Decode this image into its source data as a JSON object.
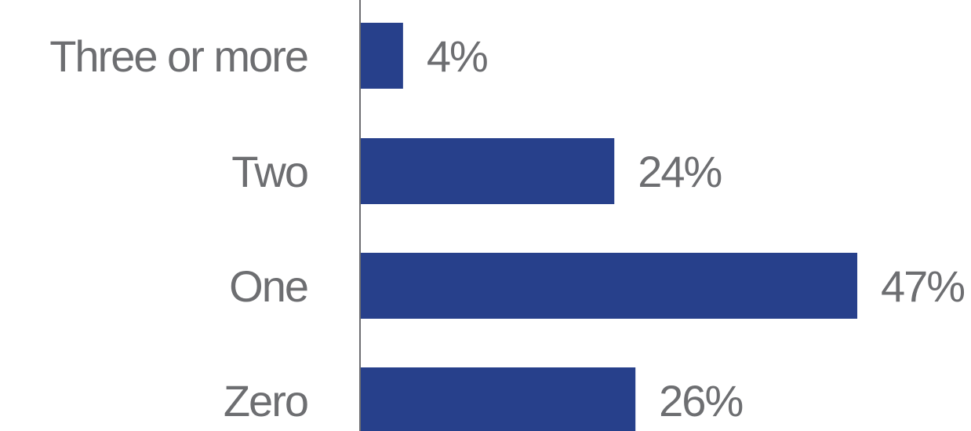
{
  "chart_data": {
    "type": "bar",
    "orientation": "horizontal",
    "categories": [
      "Three or more",
      "Two",
      "One",
      "Zero"
    ],
    "values": [
      4,
      24,
      47,
      26
    ],
    "value_labels": [
      "4%",
      "24%",
      "47%",
      "26%"
    ],
    "unit": "%",
    "xlim": [
      0,
      47
    ],
    "grid": false,
    "legend": "none",
    "bar_color": "#27408b",
    "text_color": "#6d6e71",
    "axis_color": "#6d6e71"
  }
}
